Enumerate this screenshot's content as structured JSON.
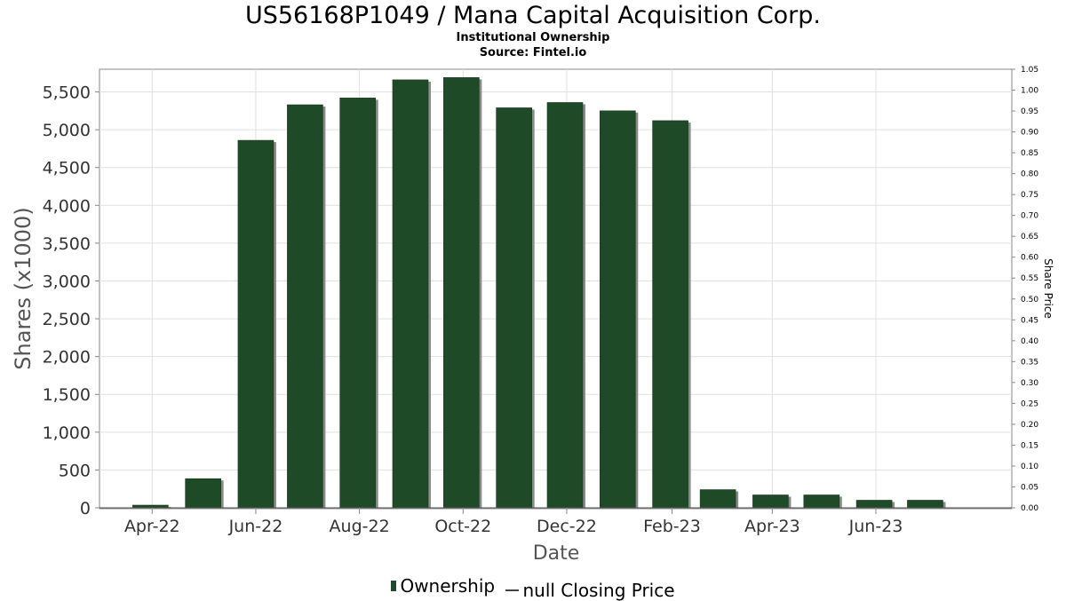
{
  "header": {
    "title": "US56168P1049 / Mana Capital Acquisition Corp.",
    "subtitle": "Institutional Ownership",
    "source": "Source: Fintel.io"
  },
  "legend": {
    "ownership_label": "Ownership",
    "price_label": "null Closing Price"
  },
  "colors": {
    "bar": "#1f4a27",
    "bar_shadow": "#8a8a8a",
    "grid": "#e0e0e0",
    "axis": "#888888"
  },
  "chart_data": {
    "type": "bar",
    "title": "US56168P1049 / Mana Capital Acquisition Corp.",
    "subtitle": "Institutional Ownership",
    "xlabel": "Date",
    "ylabel": "Shares (x1000)",
    "y2label": "Share Price",
    "ylim": [
      0,
      5800
    ],
    "y2lim": [
      0,
      1.05
    ],
    "grid": true,
    "legend_position": "bottom",
    "yticks": [
      0,
      500,
      1000,
      1500,
      2000,
      2500,
      3000,
      3500,
      4000,
      4500,
      5000,
      5500
    ],
    "ytick_labels": [
      "0",
      "500",
      "1,000",
      "1,500",
      "2,000",
      "2,500",
      "3,000",
      "3,500",
      "4,000",
      "4,500",
      "5,000",
      "5,500"
    ],
    "y2ticks": [
      0,
      0.05,
      0.1,
      0.15,
      0.2,
      0.25,
      0.3,
      0.35,
      0.4,
      0.45,
      0.5,
      0.55,
      0.6,
      0.65,
      0.7,
      0.75,
      0.8,
      0.85,
      0.9,
      0.95,
      1.0,
      1.05
    ],
    "y2tick_labels": [
      "0.00",
      "0.05",
      "0.10",
      "0.15",
      "0.20",
      "0.25",
      "0.30",
      "0.35",
      "0.40",
      "0.45",
      "0.50",
      "0.55",
      "0.60",
      "0.65",
      "0.70",
      "0.75",
      "0.80",
      "0.85",
      "0.90",
      "0.95",
      "1.00",
      "1.05"
    ],
    "xlim": [
      "2022-03-01",
      "2023-08-20"
    ],
    "xticks": [
      "2022-04-01",
      "2022-06-01",
      "2022-08-01",
      "2022-10-01",
      "2022-12-01",
      "2023-02-01",
      "2023-04-01",
      "2023-06-01"
    ],
    "xtick_labels": [
      "Apr-22",
      "Jun-22",
      "Aug-22",
      "Oct-22",
      "Dec-22",
      "Feb-23",
      "Apr-23",
      "Jun-23"
    ],
    "series": [
      {
        "name": "Ownership",
        "dates": [
          "2022-03-31",
          "2022-05-01",
          "2022-06-01",
          "2022-06-30",
          "2022-07-31",
          "2022-08-31",
          "2022-09-30",
          "2022-10-31",
          "2022-11-30",
          "2022-12-31",
          "2023-01-31",
          "2023-02-28",
          "2023-03-31",
          "2023-04-30",
          "2023-05-31",
          "2023-06-30"
        ],
        "values": [
          35,
          385,
          4860,
          5330,
          5420,
          5660,
          5690,
          5290,
          5360,
          5250,
          5120,
          240,
          170,
          170,
          100,
          100
        ]
      }
    ]
  }
}
